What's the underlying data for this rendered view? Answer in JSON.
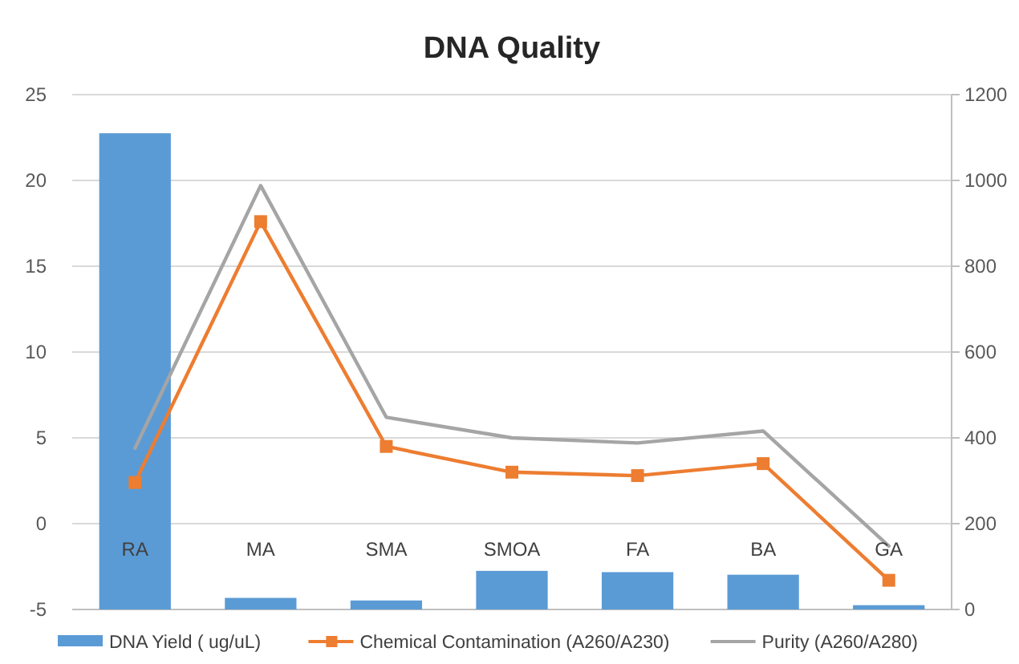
{
  "chart_data": {
    "type": "bar",
    "title": "DNA Quality",
    "categories": [
      "RA",
      "MA",
      "SMA",
      "SMOA",
      "FA",
      "BA",
      "GA"
    ],
    "series": [
      {
        "name": "DNA Yield ( ug/uL)",
        "axis": "y2",
        "color": "#5b9bd5",
        "values": [
          1110,
          27,
          21,
          90,
          87,
          81,
          10
        ]
      },
      {
        "name": "Chemical Contamination (A260/A230)",
        "type": "line",
        "axis": "y",
        "color": "#ed7d31",
        "marker": "square",
        "values": [
          2.4,
          17.6,
          4.5,
          3.0,
          2.8,
          3.5,
          -3.3
        ]
      },
      {
        "name": "Purity (A260/A280)",
        "type": "line",
        "axis": "y",
        "color": "#a5a5a5",
        "marker": "none",
        "values": [
          4.4,
          19.7,
          6.2,
          5.0,
          4.7,
          5.4,
          -1.3
        ]
      }
    ],
    "ylim": [
      -5,
      25
    ],
    "yticks": [
      -5,
      0,
      5,
      10,
      15,
      20,
      25
    ],
    "y2lim": [
      0,
      1200
    ],
    "y2ticks": [
      0,
      200,
      400,
      600,
      800,
      1000,
      1200
    ],
    "grid": "y",
    "legend": "bottom"
  }
}
